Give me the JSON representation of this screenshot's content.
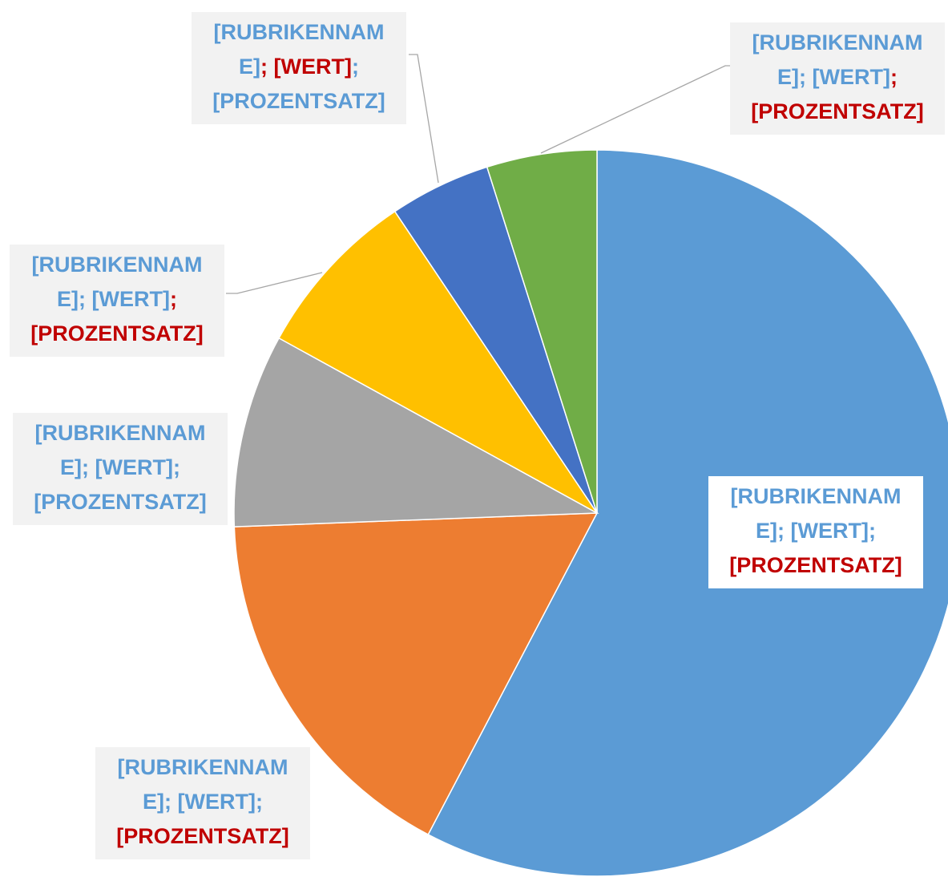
{
  "chart_data": {
    "type": "pie",
    "values": [
      57.7,
      16.7,
      8.6,
      7.6,
      4.5,
      4.9
    ],
    "colors": [
      "#5b9bd5",
      "#ed7d31",
      "#a5a5a5",
      "#ffc000",
      "#4472c4",
      "#70ad47"
    ],
    "data_labels": [
      [
        [
          {
            "text": "[RUBRIKENNAM",
            "color": "#5b9bd5"
          }
        ],
        [
          {
            "text": "E]; [WERT];",
            "color": "#5b9bd5"
          }
        ],
        [
          {
            "text": "[PROZENTSATZ]",
            "color": "#c00000"
          }
        ]
      ],
      [
        [
          {
            "text": "[RUBRIKENNAM",
            "color": "#5b9bd5"
          }
        ],
        [
          {
            "text": "E]; [WERT];",
            "color": "#5b9bd5"
          }
        ],
        [
          {
            "text": "[PROZENTSATZ]",
            "color": "#c00000"
          }
        ]
      ],
      [
        [
          {
            "text": "[RUBRIKENNAM",
            "color": "#5b9bd5"
          }
        ],
        [
          {
            "text": "E]; [WERT];",
            "color": "#5b9bd5"
          }
        ],
        [
          {
            "text": "[PROZENTSATZ]",
            "color": "#5b9bd5"
          }
        ]
      ],
      [
        [
          {
            "text": "[RUBRIKENNAM",
            "color": "#5b9bd5"
          }
        ],
        [
          {
            "text": "E]; [WERT]",
            "color": "#5b9bd5"
          },
          {
            "text": ";",
            "color": "#c00000"
          }
        ],
        [
          {
            "text": "[PROZENTSATZ]",
            "color": "#c00000"
          }
        ]
      ],
      [
        [
          {
            "text": "[RUBRIKENNAM",
            "color": "#5b9bd5"
          }
        ],
        [
          {
            "text": "E]",
            "color": "#5b9bd5"
          },
          {
            "text": "; [WERT]",
            "color": "#c00000"
          },
          {
            "text": ";",
            "color": "#5b9bd5"
          }
        ],
        [
          {
            "text": "[PROZENTSATZ]",
            "color": "#5b9bd5"
          }
        ]
      ],
      [
        [
          {
            "text": "[RUBRIKENNAM",
            "color": "#5b9bd5"
          }
        ],
        [
          {
            "text": "E]; [WERT]",
            "color": "#5b9bd5"
          },
          {
            "text": ";",
            "color": "#c00000"
          }
        ],
        [
          {
            "text": "[PROZENTSATZ]",
            "color": "#c00000"
          }
        ]
      ]
    ]
  }
}
